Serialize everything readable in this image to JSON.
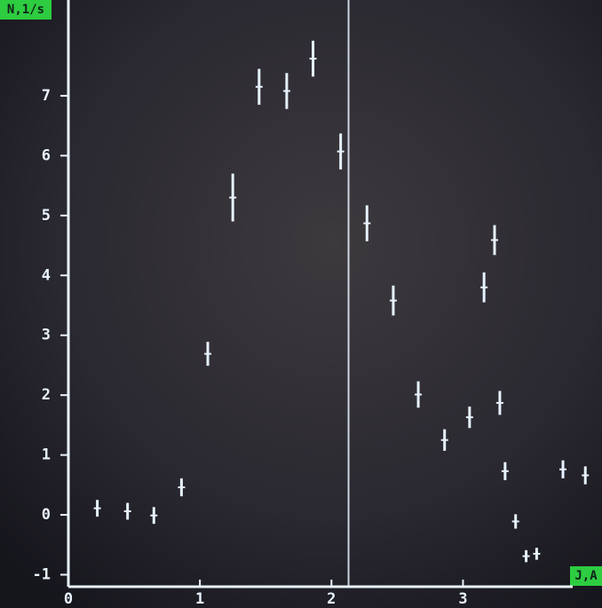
{
  "chart_data": {
    "type": "scatter",
    "x_label": "J,A",
    "y_label": "N,1/s",
    "x": [
      0.22,
      0.45,
      0.65,
      0.86,
      1.06,
      1.25,
      1.45,
      1.66,
      1.86,
      2.07,
      2.27,
      2.47,
      2.66,
      2.86,
      3.05,
      3.16,
      3.24,
      3.28,
      3.32,
      3.4,
      3.48,
      3.56,
      3.76,
      3.93
    ],
    "series": [
      {
        "color": "#e6f2ff",
        "values": [
          0.11,
          0.06,
          -0.01,
          0.46,
          2.69,
          5.3,
          7.15,
          7.08,
          7.62,
          6.07,
          4.87,
          3.58,
          2.01,
          1.25,
          1.63,
          3.8,
          4.59,
          1.87,
          0.73,
          -0.11,
          -0.69,
          -0.65,
          0.76,
          0.66
        ],
        "errors": [
          0.14,
          0.14,
          0.14,
          0.15,
          0.2,
          0.4,
          0.3,
          0.3,
          0.3,
          0.3,
          0.3,
          0.25,
          0.22,
          0.18,
          0.18,
          0.25,
          0.25,
          0.2,
          0.15,
          0.12,
          0.1,
          0.1,
          0.15,
          0.15
        ]
      }
    ],
    "cursor_x": 2.13,
    "xlim": [
      0,
      4.05
    ],
    "ylim": [
      -1.2,
      8.6
    ],
    "xticks": [
      0,
      1,
      2,
      3
    ],
    "yticks": [
      -1,
      0,
      1,
      2,
      3,
      4,
      5,
      6,
      7
    ],
    "axis_color": "#e9f3ff",
    "label_box_color": "#2ecc40"
  }
}
